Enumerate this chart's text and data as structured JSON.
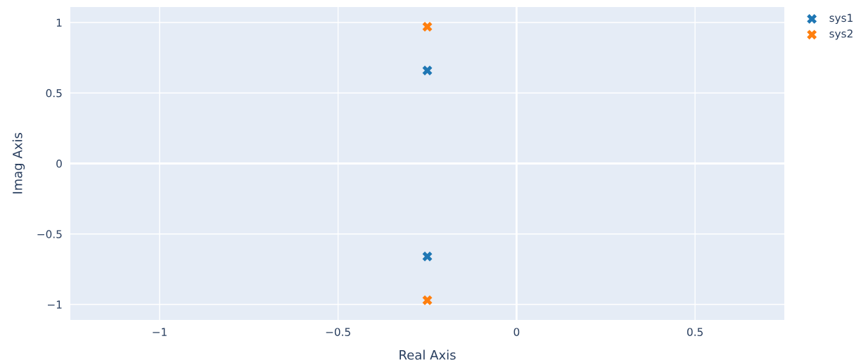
{
  "chart_data": {
    "type": "scatter",
    "xlabel": "Real Axis",
    "ylabel": "Imag Axis",
    "xlim": [
      -1.25,
      0.75
    ],
    "xticks": [
      {
        "value": -1,
        "label": "−1"
      },
      {
        "value": -0.5,
        "label": "−0.5"
      },
      0,
      0.5
    ],
    "ylim": [
      -1.11,
      1.11
    ],
    "yticks": [
      {
        "value": -1,
        "label": "−1"
      },
      {
        "value": -0.5,
        "label": "−0.5"
      },
      0,
      0.5,
      1
    ],
    "grid": true,
    "legend": "top right",
    "marker": "cross",
    "x": [
      -0.25,
      -0.25
    ],
    "series": [
      {
        "name": "sys1",
        "color": "#1f77b4",
        "values": [
          0.66,
          -0.66
        ]
      },
      {
        "name": "sys2",
        "color": "#ff7f0e",
        "values": [
          0.97,
          -0.97
        ]
      }
    ]
  }
}
